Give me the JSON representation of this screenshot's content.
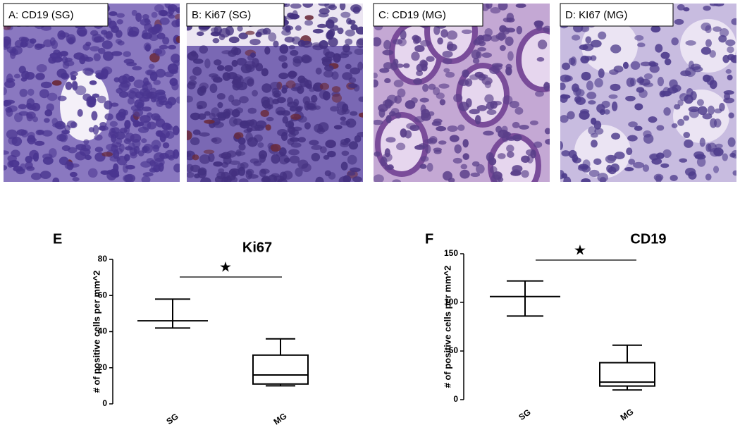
{
  "panels": [
    {
      "label": "A: CD19 (SG)"
    },
    {
      "label": "B: Ki67 (SG)"
    },
    {
      "label": "C: CD19 (MG)"
    },
    {
      "label": "D: KI67 (MG)"
    }
  ],
  "chart_data": [
    {
      "type": "box",
      "panel": "E",
      "title": "Ki67",
      "ylabel": "# of positive cells per mm^2",
      "categories": [
        "SG",
        "MG"
      ],
      "boxes": [
        {
          "min": 42,
          "q1": 46,
          "median": 46,
          "q3": 46,
          "max": 58
        },
        {
          "min": 10,
          "q1": 11,
          "median": 16,
          "q3": 27,
          "max": 36
        }
      ],
      "annotation": "★",
      "color": "#000000",
      "ylim": [
        0,
        80
      ],
      "yticks": [
        0,
        20,
        40,
        60,
        80
      ]
    },
    {
      "type": "box",
      "panel": "F",
      "title": "CD19",
      "ylabel": "# of positive cells per mm^2",
      "categories": [
        "SG",
        "MG"
      ],
      "boxes": [
        {
          "min": 86,
          "q1": 106,
          "median": 106,
          "q3": 106,
          "max": 122
        },
        {
          "min": 10,
          "q1": 14,
          "median": 18,
          "q3": 38,
          "max": 56
        }
      ],
      "annotation": "★",
      "color": "#000000",
      "ylim": [
        0,
        150
      ],
      "yticks": [
        0,
        50,
        100,
        150
      ]
    }
  ]
}
